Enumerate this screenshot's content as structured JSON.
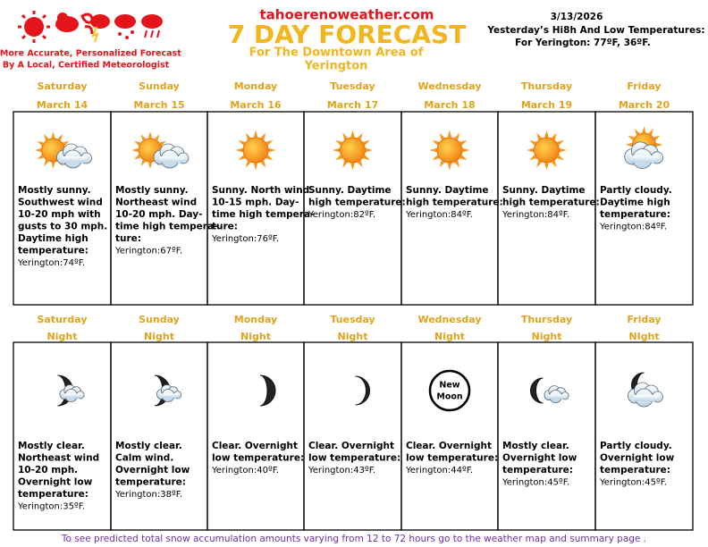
{
  "header": {
    "tagline": [
      "A More Accurate, Personalized Forecast",
      "By A Local, Certified Meteorologist"
    ],
    "site": "tahoerenoweather.com",
    "title": "7 DAY FORECAST",
    "subtitle": [
      "For The Downtown Area of",
      "Yerington"
    ],
    "date": "3/13/2026",
    "yesterday": [
      "Yesterday’s Hi8h And Low Temperatures:",
      "For Yerington: 77ºF, 36ºF."
    ]
  },
  "days": [
    {
      "day": "Saturday",
      "date": "March 14",
      "forecast": [
        "Mostly sunny.",
        "Southwest wind",
        "10-20 mph with",
        "gusts to 30 mph.",
        "Daytime high",
        "temperature:"
      ],
      "temp": "Yerington:74ºF."
    },
    {
      "day": "Sunday",
      "date": "March 15",
      "forecast": [
        "Mostly sunny.",
        "Northeast wind",
        "10-20 mph. Day-",
        "time high tempera-",
        "ture:"
      ],
      "temp": "Yerington:67ºF."
    },
    {
      "day": "Monday",
      "date": "March 16",
      "forecast": [
        "Sunny. North wind",
        "10-15 mph. Day-",
        "time high tempera-",
        "ture:"
      ],
      "temp": "Yerington:76ºF."
    },
    {
      "day": "Tuesday",
      "date": "March 17",
      "forecast": [
        "Sunny. Daytime",
        "high temperature:"
      ],
      "temp": "Yerington:82ºF."
    },
    {
      "day": "Wednesday",
      "date": "March 18",
      "forecast": [
        "Sunny. Daytime",
        "high temperature:"
      ],
      "temp": "Yerington:84ºF."
    },
    {
      "day": "Thursday",
      "date": "March 19",
      "forecast": [
        "Sunny. Daytime",
        "high temperature:"
      ],
      "temp": "Yerington:84ºF."
    },
    {
      "day": "Friday",
      "date": "March 20",
      "forecast": [
        "Partly cloudy.",
        "Daytime high",
        "temperature:"
      ],
      "temp": "Yerington:84ºF."
    }
  ],
  "nights": [
    {
      "day": "Saturday",
      "label": "Night",
      "forecast": [
        "Mostly clear.",
        "Northeast wind",
        "10-20 mph.",
        "Overnight low",
        "temperature:"
      ],
      "temp": "Yerington:35ºF."
    },
    {
      "day": "Sunday",
      "label": "Night",
      "forecast": [
        "Mostly clear.",
        "Calm wind.",
        "Overnight low",
        "temperature:"
      ],
      "temp": "Yerington:38ºF."
    },
    {
      "day": "Monday",
      "label": "Night",
      "forecast": [
        "Clear. Overnight",
        "low temperature:"
      ],
      "temp": "Yerington:40ºF."
    },
    {
      "day": "Tuesday",
      "label": "Night",
      "forecast": [
        "Clear. Overnight",
        "low temperature:"
      ],
      "temp": "Yerington:43ºF."
    },
    {
      "day": "Wednesday",
      "label": "Night",
      "forecast": [
        "Clear. Overnight",
        "low temperature:"
      ],
      "temp": "Yerington:44ºF.",
      "moon": [
        "New",
        "Moon"
      ]
    },
    {
      "day": "Thursday",
      "label": "Night",
      "forecast": [
        "Mostly clear.",
        "Overnight low",
        "temperature:"
      ],
      "temp": "Yerington:45ºF."
    },
    {
      "day": "Friday",
      "label": "NIght",
      "forecast": [
        "Partly cloudy.",
        "Overnight low",
        "temperature:"
      ],
      "temp": "Yerington:45ºF."
    }
  ],
  "footer": "To see predicted total snow accumulation amounts varying from 12 to 72 hours go to the weather map and summary page ."
}
